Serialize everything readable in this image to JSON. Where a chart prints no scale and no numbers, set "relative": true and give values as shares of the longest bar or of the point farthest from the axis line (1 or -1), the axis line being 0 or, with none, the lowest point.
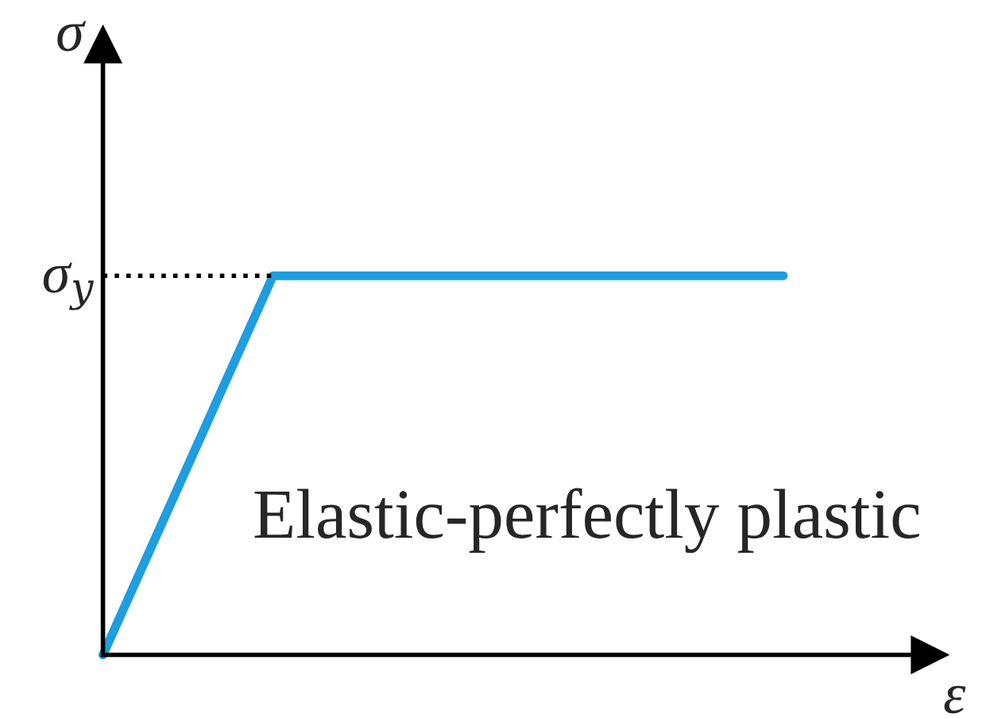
{
  "chart_data": {
    "type": "line",
    "relative": true,
    "categories": [
      null,
      null,
      null,
      null,
      null
    ],
    "series": [
      {
        "color": "#1e9de0",
        "values": [
          0,
          1,
          1,
          1,
          1
        ]
      }
    ],
    "xlabel": "ε",
    "ylabel": "σ",
    "ref_lines": [
      {
        "axis": "y",
        "value": 1,
        "label": "σ$_{y}$",
        "color": "#000000",
        "line_style": "dotted"
      }
    ],
    "annotations": [
      "Elastic-perfectly plastic"
    ],
    "grid": false,
    "legend": false,
    "marker": "none",
    "line_style": "solid"
  }
}
